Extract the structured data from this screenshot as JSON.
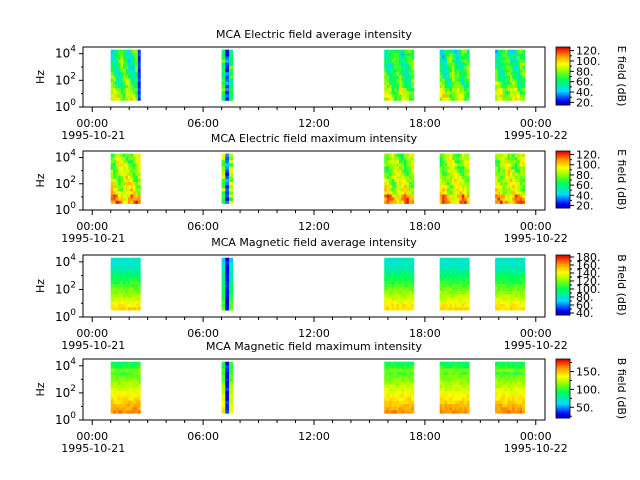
{
  "chart_data": [
    {
      "type": "heatmap",
      "title": "MCA  Electric field average intensity",
      "ylabel": "Hz",
      "colorbar_label": "E field (dB)",
      "colorbar_ticks": [
        "20.",
        "40.",
        "60.",
        "80.",
        "100.",
        "120."
      ],
      "colorbar_range": [
        15,
        127
      ],
      "x_ticks": [
        "00:00",
        "06:00",
        "12:00",
        "18:00",
        "00:00"
      ],
      "x_dates": [
        "1995-10-21",
        "1995-10-22"
      ],
      "xlim_hours": [
        -0.5,
        24.5
      ],
      "ylim_log10": [
        0,
        4.5
      ],
      "y_ticks": [
        {
          "base": "10",
          "exp": "0"
        },
        {
          "base": "10",
          "exp": "2"
        },
        {
          "base": "10",
          "exp": "4"
        }
      ],
      "data_blocks_hours": [
        [
          1.0,
          2.6
        ],
        [
          7.0,
          7.6
        ],
        [
          15.8,
          17.4
        ],
        [
          18.8,
          20.4
        ],
        [
          21.8,
          23.4
        ]
      ],
      "freq_range_log10": [
        0.5,
        4.3
      ],
      "mode": "electric-avg"
    },
    {
      "type": "heatmap",
      "title": "MCA  Electric field maximum intensity",
      "ylabel": "Hz",
      "colorbar_label": "E field (dB)",
      "colorbar_ticks": [
        "20.",
        "40.",
        "60.",
        "80.",
        "100.",
        "120."
      ],
      "colorbar_range": [
        15,
        127
      ],
      "x_ticks": [
        "00:00",
        "06:00",
        "12:00",
        "18:00",
        "00:00"
      ],
      "x_dates": [
        "1995-10-21",
        "1995-10-22"
      ],
      "xlim_hours": [
        -0.5,
        24.5
      ],
      "ylim_log10": [
        0,
        4.5
      ],
      "y_ticks": [
        {
          "base": "10",
          "exp": "0"
        },
        {
          "base": "10",
          "exp": "2"
        },
        {
          "base": "10",
          "exp": "4"
        }
      ],
      "data_blocks_hours": [
        [
          1.0,
          2.6
        ],
        [
          7.0,
          7.6
        ],
        [
          15.8,
          17.4
        ],
        [
          18.8,
          20.4
        ],
        [
          21.8,
          23.4
        ]
      ],
      "freq_range_log10": [
        0.5,
        4.3
      ],
      "mode": "electric-max"
    },
    {
      "type": "heatmap",
      "title": "MCA  Magnetic field average intensity",
      "ylabel": "Hz",
      "colorbar_label": "B field (dB)",
      "colorbar_ticks": [
        "40.",
        "60.",
        "80.",
        "100.",
        "120.",
        "140.",
        "160.",
        "180."
      ],
      "colorbar_range": [
        35,
        185
      ],
      "x_ticks": [
        "00:00",
        "06:00",
        "12:00",
        "18:00",
        "00:00"
      ],
      "x_dates": [
        "1995-10-21",
        "1995-10-22"
      ],
      "xlim_hours": [
        -0.5,
        24.5
      ],
      "ylim_log10": [
        0,
        4.5
      ],
      "y_ticks": [
        {
          "base": "10",
          "exp": "0"
        },
        {
          "base": "10",
          "exp": "2"
        },
        {
          "base": "10",
          "exp": "4"
        }
      ],
      "data_blocks_hours": [
        [
          1.0,
          2.6
        ],
        [
          7.0,
          7.6
        ],
        [
          15.8,
          17.4
        ],
        [
          18.8,
          20.4
        ],
        [
          21.8,
          23.4
        ]
      ],
      "freq_range_log10": [
        0.5,
        4.3
      ],
      "mode": "magnetic-avg"
    },
    {
      "type": "heatmap",
      "title": "MCA  Magnetic field maximum intensity",
      "ylabel": "Hz",
      "colorbar_label": "B field (dB)",
      "colorbar_ticks": [
        "50.",
        "100.",
        "150."
      ],
      "colorbar_range": [
        20,
        185
      ],
      "x_ticks": [
        "00:00",
        "06:00",
        "12:00",
        "18:00",
        "00:00"
      ],
      "x_dates": [
        "1995-10-21",
        "1995-10-22"
      ],
      "xlim_hours": [
        -0.5,
        24.5
      ],
      "ylim_log10": [
        0,
        4.5
      ],
      "y_ticks": [
        {
          "base": "10",
          "exp": "0"
        },
        {
          "base": "10",
          "exp": "2"
        },
        {
          "base": "10",
          "exp": "4"
        }
      ],
      "data_blocks_hours": [
        [
          1.0,
          2.6
        ],
        [
          7.0,
          7.6
        ],
        [
          15.8,
          17.4
        ],
        [
          18.8,
          20.4
        ],
        [
          21.8,
          23.4
        ]
      ],
      "freq_range_log10": [
        0.5,
        4.3
      ],
      "mode": "magnetic-max"
    }
  ]
}
